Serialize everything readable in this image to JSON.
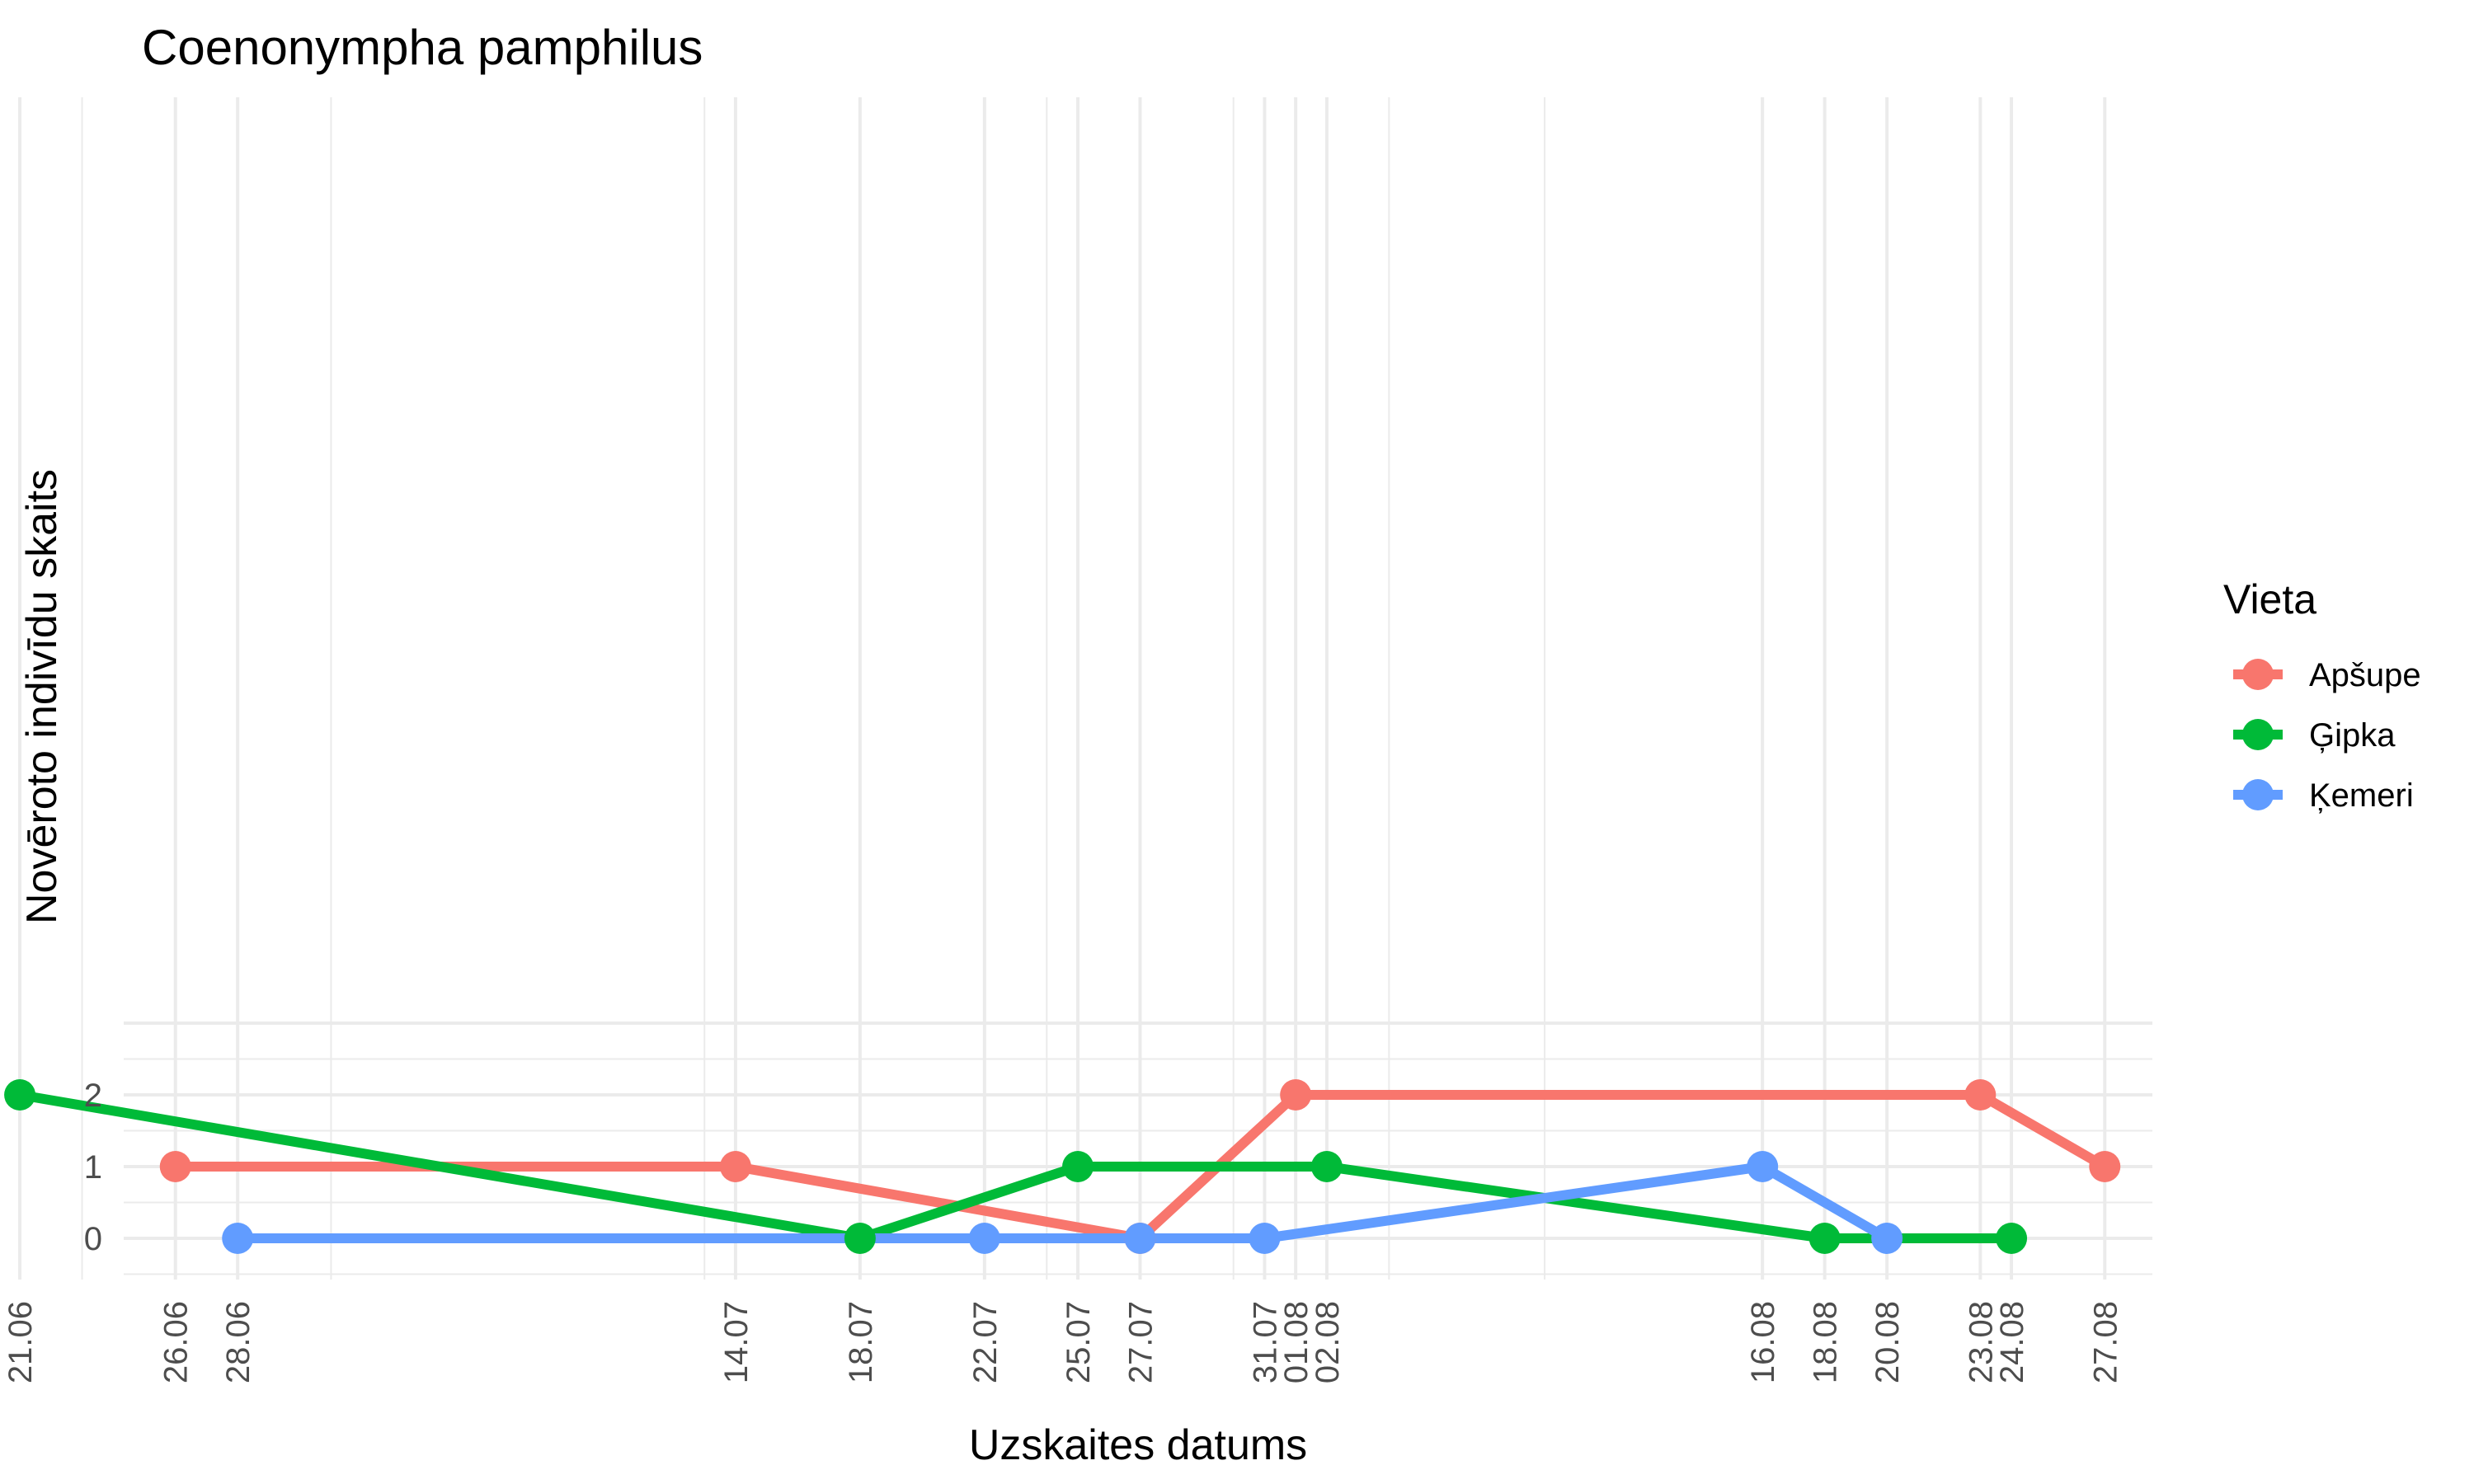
{
  "chart_data": {
    "type": "line",
    "title": "Coenonympha pamphilus",
    "xlabel": "Uzskaites datums",
    "ylabel": "Novēroto indivīdu skaits",
    "ylim": [
      -0.6,
      16
    ],
    "yticks": [
      0,
      1,
      2
    ],
    "x_ticks": [
      "21.06",
      "26.06",
      "28.06",
      "14.07",
      "18.07",
      "22.07",
      "25.07",
      "27.07",
      "31.07",
      "01.08",
      "02.08",
      "16.08",
      "18.08",
      "20.08",
      "23.08",
      "24.08",
      "27.08"
    ],
    "legend_title": "Vieta",
    "legend_position": "right",
    "grid": true,
    "series": [
      {
        "name": "Apšupe",
        "color": "#F8766D",
        "points": [
          [
            "26.06",
            1
          ],
          [
            "14.07",
            1
          ],
          [
            "27.07",
            0
          ],
          [
            "01.08",
            2
          ],
          [
            "23.08",
            2
          ],
          [
            "27.08",
            1
          ]
        ]
      },
      {
        "name": "Ģipka",
        "color": "#00BA38",
        "points": [
          [
            "21.06",
            2
          ],
          [
            "18.07",
            0
          ],
          [
            "25.07",
            1
          ],
          [
            "02.08",
            1
          ],
          [
            "18.08",
            0
          ],
          [
            "24.08",
            0
          ]
        ]
      },
      {
        "name": "Ķemeri",
        "color": "#619CFF",
        "points": [
          [
            "28.06",
            0
          ],
          [
            "22.07",
            0
          ],
          [
            "27.07",
            0
          ],
          [
            "31.07",
            0
          ],
          [
            "16.08",
            1
          ],
          [
            "20.08",
            0
          ]
        ]
      }
    ]
  }
}
